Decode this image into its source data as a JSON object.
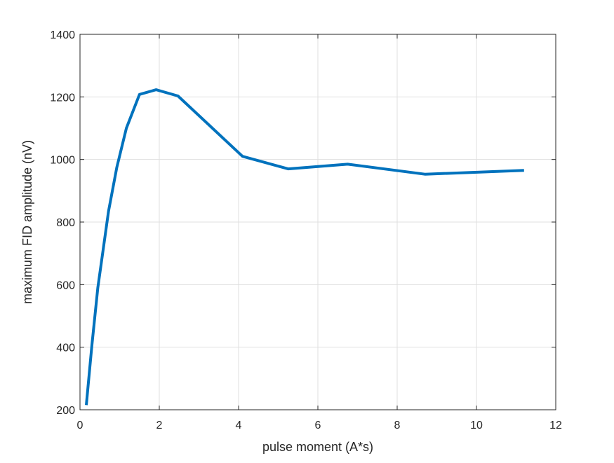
{
  "chart_data": {
    "type": "line",
    "title": "",
    "xlabel": "pulse moment (A*s)",
    "ylabel": "maximum FID amplitude (nV)",
    "xlim": [
      0,
      12
    ],
    "ylim": [
      200,
      1400
    ],
    "xticks": [
      0,
      2,
      4,
      6,
      8,
      10,
      12
    ],
    "yticks": [
      200,
      400,
      600,
      800,
      1000,
      1200,
      1400
    ],
    "grid": true,
    "legend": "none",
    "series": [
      {
        "color": "#0072BD",
        "x": [
          0.16,
          0.3,
          0.45,
          0.72,
          0.93,
          1.17,
          1.5,
          1.92,
          2.47,
          4.1,
          5.25,
          6.75,
          8.7,
          11.2
        ],
        "y": [
          215,
          405,
          590,
          835,
          975,
          1100,
          1208,
          1223,
          1203,
          1010,
          970,
          985,
          953,
          965
        ]
      }
    ]
  }
}
